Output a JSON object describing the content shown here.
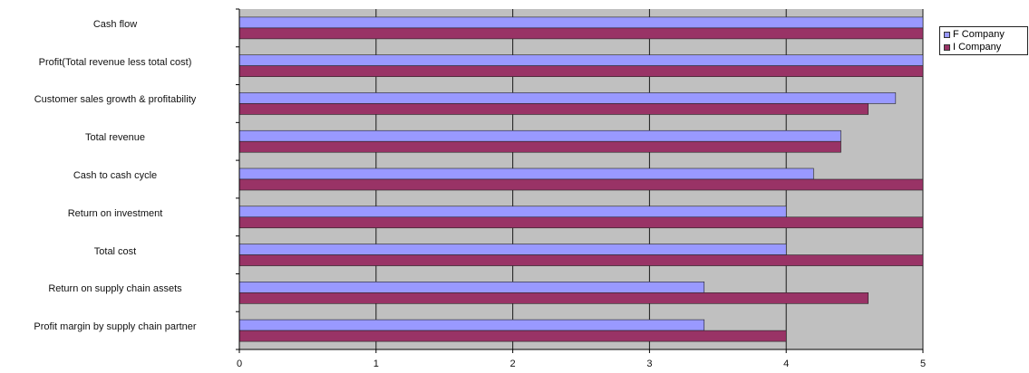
{
  "chart_data": {
    "type": "bar",
    "orientation": "horizontal",
    "categories": [
      "Cash flow",
      "Profit(Total revenue less total cost)",
      "Customer sales growth & profitability",
      "Total revenue",
      "Cash to cash cycle",
      "Return on investment",
      "Total cost",
      "Return on supply chain assets",
      "Profit margin by supply chain partner"
    ],
    "series": [
      {
        "name": "F Company",
        "color": "#9999ff",
        "values": [
          5,
          5,
          4.8,
          4.4,
          4.2,
          4,
          4,
          3.4,
          3.4
        ]
      },
      {
        "name": "I Company",
        "color": "#993366",
        "values": [
          5,
          5,
          4.6,
          4.4,
          5,
          5,
          5,
          4.6,
          4
        ]
      }
    ],
    "xlim": [
      0,
      5
    ],
    "xticks": [
      "0",
      "1",
      "2",
      "3",
      "4",
      "5"
    ],
    "plot_background": "#c0c0c0",
    "grid": "vertical",
    "legend_position": "top-right",
    "title": "",
    "xlabel": "",
    "ylabel": ""
  }
}
